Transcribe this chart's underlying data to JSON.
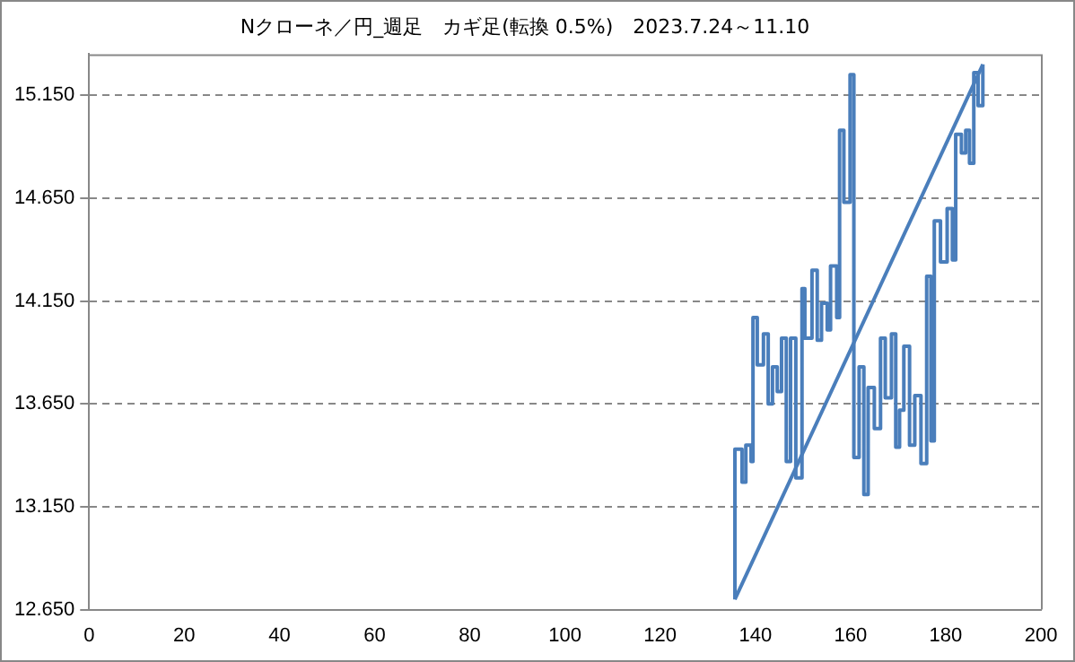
{
  "chart_data": {
    "type": "line",
    "title": "Nクローネ／円_週足　カギ足(転換 0.5%)　2023.7.24～11.10",
    "x": [
      135.7,
      135.7,
      137.2,
      137.2,
      138.0,
      138.0,
      139.1,
      139.1,
      139.5,
      139.5,
      140.4,
      140.4,
      141.7,
      141.7,
      142.7,
      142.7,
      143.6,
      143.6,
      144.6,
      144.6,
      145.5,
      145.5,
      146.5,
      146.5,
      147.4,
      147.4,
      148.5,
      148.5,
      149.8,
      149.8,
      150.4,
      150.4,
      151.9,
      151.9,
      153.0,
      153.0,
      153.9,
      153.9,
      155.1,
      155.1,
      155.8,
      155.8,
      157.1,
      157.1,
      157.7,
      157.7,
      158.6,
      158.6,
      159.9,
      159.9,
      160.7,
      160.7,
      161.8,
      161.8,
      162.8,
      162.8,
      163.7,
      163.7,
      165.0,
      165.0,
      166.3,
      166.3,
      167.3,
      167.3,
      168.6,
      168.6,
      169.5,
      169.5,
      170.3,
      170.3,
      171.2,
      171.2,
      172.4,
      172.4,
      173.5,
      173.5,
      174.8,
      174.8,
      176.0,
      176.0,
      176.9,
      176.9,
      177.6,
      177.6,
      178.9,
      178.9,
      180.3,
      180.3,
      181.4,
      181.4,
      182.1,
      182.1,
      183.3,
      183.3,
      184.2,
      184.2,
      185.0,
      185.0,
      185.9,
      185.9,
      186.8,
      186.8,
      187.8,
      187.8
    ],
    "series": [
      {
        "color": "#4a7ebb",
        "values": [
          12.7,
          13.43,
          13.43,
          13.27,
          13.27,
          13.45,
          13.45,
          13.37,
          13.37,
          14.07,
          14.07,
          13.84,
          13.84,
          13.99,
          13.99,
          13.65,
          13.65,
          13.83,
          13.83,
          13.71,
          13.71,
          13.97,
          13.97,
          13.37,
          13.37,
          13.97,
          13.97,
          13.29,
          13.29,
          14.21,
          14.21,
          13.97,
          13.97,
          14.3,
          14.3,
          13.96,
          13.96,
          14.14,
          14.14,
          14.01,
          14.01,
          14.32,
          14.32,
          14.07,
          14.07,
          14.98,
          14.98,
          14.63,
          14.63,
          15.25,
          15.25,
          13.39,
          13.39,
          13.83,
          13.83,
          13.21,
          13.21,
          13.73,
          13.73,
          13.53,
          13.53,
          13.97,
          13.97,
          13.68,
          13.68,
          13.99,
          13.99,
          13.44,
          13.44,
          13.62,
          13.62,
          13.93,
          13.93,
          13.45,
          13.45,
          13.69,
          13.69,
          13.36,
          13.36,
          14.27,
          14.27,
          13.47,
          13.47,
          14.54,
          14.54,
          14.34,
          14.34,
          14.6,
          14.6,
          14.35,
          14.35,
          14.96,
          14.96,
          14.87,
          14.87,
          14.98,
          14.98,
          14.82,
          14.82,
          15.26,
          15.26,
          15.1,
          15.1,
          15.3
        ]
      },
      {
        "type": "line",
        "color": "#4a7ebb",
        "x": [
          135.7,
          187.8
        ],
        "values": [
          12.7,
          15.3
        ]
      }
    ],
    "xlim": [
      0,
      200
    ],
    "xticks": [
      0,
      20,
      40,
      60,
      80,
      100,
      120,
      140,
      160,
      180,
      200
    ],
    "ylim": [
      12.65,
      15.35
    ],
    "yticks": [
      {
        "value": 12.65,
        "label": "12.650"
      },
      {
        "value": 13.15,
        "label": "13.150"
      },
      {
        "value": 13.65,
        "label": "13.650"
      },
      {
        "value": 14.15,
        "label": "14.150"
      },
      {
        "value": 14.65,
        "label": "14.650"
      },
      {
        "value": 15.15,
        "label": "15.150"
      }
    ],
    "grid": "y",
    "legend": false,
    "marker": "none",
    "line_style": "solid"
  }
}
